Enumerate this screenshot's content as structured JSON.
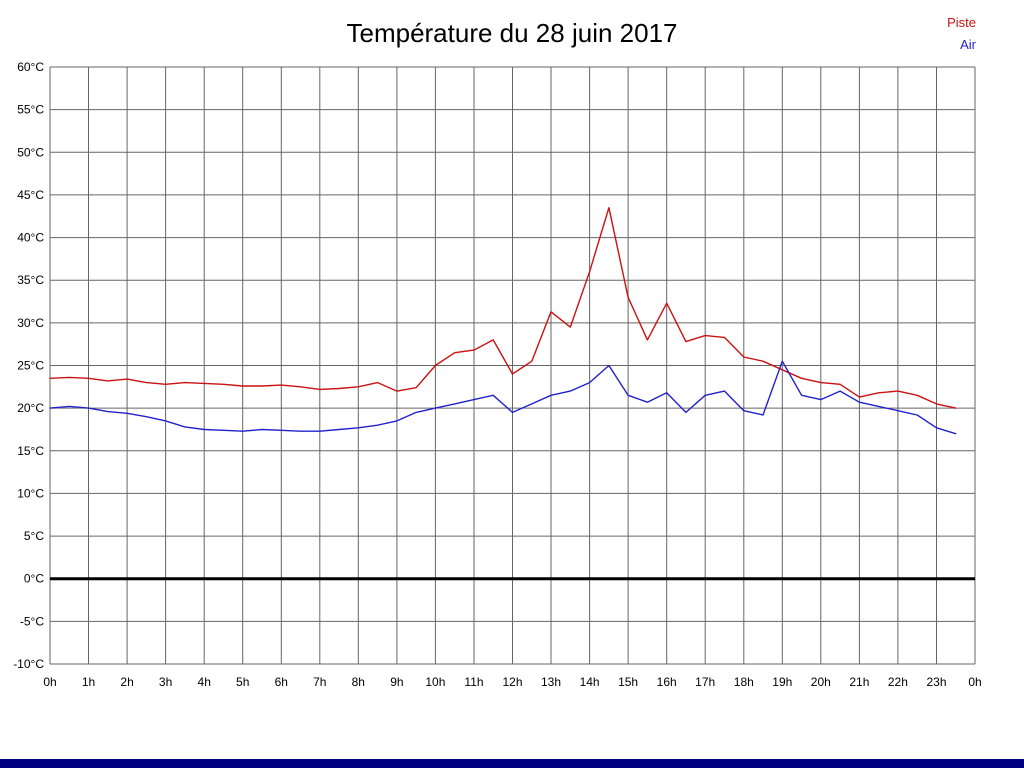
{
  "page": {
    "background": "#ffffff",
    "bottom_bar_color": "#000080"
  },
  "chart_data": {
    "type": "line",
    "title": "Température du 28 juin 2017",
    "xlabel": "",
    "ylabel": "",
    "ylim": [
      -10,
      60
    ],
    "y_tick_step": 5,
    "y_tick_suffix": "°C",
    "x_hours_range": [
      0,
      24
    ],
    "x_step_hours": 0.5,
    "x_ticks": [
      "0h",
      "1h",
      "2h",
      "3h",
      "4h",
      "5h",
      "6h",
      "7h",
      "8h",
      "9h",
      "10h",
      "11h",
      "12h",
      "13h",
      "14h",
      "15h",
      "16h",
      "17h",
      "18h",
      "19h",
      "20h",
      "21h",
      "22h",
      "23h",
      "0h"
    ],
    "grid": true,
    "grid_color": "#666666",
    "zero_line": {
      "value": 0,
      "color": "#000000",
      "width": 3
    },
    "legend_position": "top-right",
    "series": [
      {
        "name": "Piste",
        "color": "#cc1111",
        "start_hour": 0,
        "values": [
          23.5,
          23.6,
          23.5,
          23.2,
          23.4,
          23.0,
          22.8,
          23.0,
          22.9,
          22.8,
          22.6,
          22.6,
          22.7,
          22.5,
          22.2,
          22.3,
          22.5,
          23.0,
          22.0,
          22.4,
          25.0,
          26.5,
          26.8,
          28.0,
          24.0,
          25.5,
          31.3,
          29.5,
          36.0,
          43.5,
          33.0,
          28.0,
          32.3,
          27.8,
          28.5,
          28.3,
          26.0,
          25.5,
          24.5,
          23.5,
          23.0,
          22.8,
          21.3,
          21.8,
          22.0,
          21.5,
          20.5,
          20.0
        ]
      },
      {
        "name": "Air",
        "color": "#2222cc",
        "start_hour": 0,
        "values": [
          20.0,
          20.2,
          20.0,
          19.6,
          19.4,
          19.0,
          18.5,
          17.8,
          17.5,
          17.4,
          17.3,
          17.5,
          17.4,
          17.3,
          17.3,
          17.5,
          17.7,
          18.0,
          18.5,
          19.5,
          20.0,
          20.5,
          21.0,
          21.5,
          19.5,
          20.5,
          21.5,
          22.0,
          23.0,
          25.0,
          21.5,
          20.7,
          21.8,
          19.5,
          21.5,
          22.0,
          19.7,
          19.2,
          25.5,
          21.5,
          21.0,
          22.0,
          20.7,
          20.2,
          19.7,
          19.2,
          17.7,
          17.0
        ]
      }
    ]
  }
}
